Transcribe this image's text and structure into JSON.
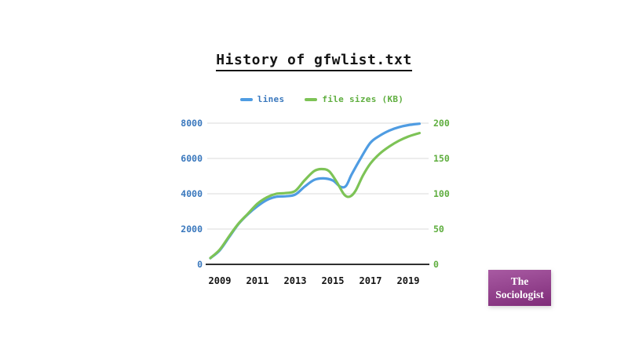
{
  "title": {
    "text": "History of gfwlist.txt"
  },
  "legend": [
    {
      "label": "lines",
      "text_color": "#3a78bd",
      "line_color": "#4f9ce2"
    },
    {
      "label": "file sizes (KB)",
      "text_color": "#5fae3f",
      "line_color": "#7dc356"
    }
  ],
  "colors": {
    "grid": "#e2e2e2",
    "axis": "#303030",
    "left_tick_text": "#3a78bd",
    "right_tick_text": "#5fae3f"
  },
  "chart_data": {
    "type": "line",
    "title": "History of gfwlist.txt",
    "grid": true,
    "legend_position": "top-center",
    "x_axis": {
      "ticks": [
        "2009",
        "2011",
        "2013",
        "2015",
        "2017",
        "2019"
      ],
      "tick_values": [
        2009,
        2011,
        2013,
        2015,
        2017,
        2019
      ],
      "range": [
        2008.4,
        2019.7
      ]
    },
    "y_axis_left": {
      "series": "lines",
      "ticks": [
        "0",
        "2000",
        "4000",
        "6000",
        "8000"
      ],
      "tick_values": [
        0,
        2000,
        4000,
        6000,
        8000
      ],
      "range": [
        0,
        8000
      ]
    },
    "y_axis_right": {
      "series": "file sizes (KB)",
      "ticks": [
        "0",
        "50",
        "100",
        "150",
        "200"
      ],
      "tick_values": [
        0,
        50,
        100,
        150,
        200
      ],
      "range": [
        0,
        200
      ]
    },
    "series": [
      {
        "name": "lines",
        "axis": "left",
        "color": "#4f9ce2",
        "points": [
          [
            2008.5,
            350
          ],
          [
            2009,
            800
          ],
          [
            2009.5,
            1550
          ],
          [
            2010,
            2300
          ],
          [
            2010.5,
            2850
          ],
          [
            2011,
            3300
          ],
          [
            2011.5,
            3650
          ],
          [
            2012,
            3830
          ],
          [
            2012.5,
            3860
          ],
          [
            2013,
            3950
          ],
          [
            2013.5,
            4400
          ],
          [
            2014,
            4780
          ],
          [
            2014.5,
            4870
          ],
          [
            2015,
            4750
          ],
          [
            2015.4,
            4400
          ],
          [
            2015.7,
            4450
          ],
          [
            2016,
            5100
          ],
          [
            2016.5,
            6050
          ],
          [
            2017,
            6900
          ],
          [
            2017.5,
            7300
          ],
          [
            2018,
            7580
          ],
          [
            2018.5,
            7770
          ],
          [
            2019,
            7890
          ],
          [
            2019.6,
            7970
          ]
        ]
      },
      {
        "name": "file sizes (KB)",
        "axis": "right",
        "color": "#7dc356",
        "points": [
          [
            2008.5,
            9
          ],
          [
            2009,
            21
          ],
          [
            2009.5,
            40
          ],
          [
            2010,
            58
          ],
          [
            2010.5,
            72
          ],
          [
            2011,
            86
          ],
          [
            2011.5,
            95
          ],
          [
            2012,
            100
          ],
          [
            2012.5,
            101
          ],
          [
            2013,
            104
          ],
          [
            2013.5,
            119
          ],
          [
            2014,
            132
          ],
          [
            2014.4,
            135
          ],
          [
            2014.8,
            132
          ],
          [
            2015.2,
            117
          ],
          [
            2015.6,
            99
          ],
          [
            2015.9,
            96
          ],
          [
            2016.2,
            104
          ],
          [
            2016.6,
            126
          ],
          [
            2017,
            143
          ],
          [
            2017.5,
            157
          ],
          [
            2018,
            167
          ],
          [
            2018.5,
            175
          ],
          [
            2019,
            181
          ],
          [
            2019.6,
            186
          ]
        ]
      }
    ]
  },
  "badge": {
    "line1": "The",
    "line2": "Sociologist",
    "bg_from": "#a85aa2",
    "bg_to": "#7f2c79",
    "text_color": "#ffffff"
  }
}
